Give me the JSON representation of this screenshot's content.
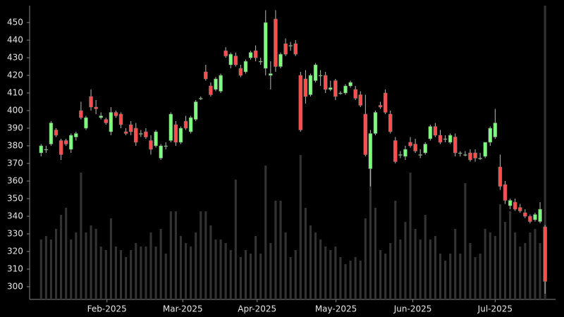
{
  "chart_data": {
    "type": "candlestick",
    "open": [
      376,
      378,
      381,
      389,
      383,
      383,
      378,
      385,
      400,
      390,
      408,
      402,
      396,
      395,
      388,
      399,
      398,
      388,
      392,
      390,
      387,
      388,
      383,
      380,
      373,
      380,
      383,
      392,
      382,
      394,
      388,
      395,
      407,
      422,
      414,
      412,
      411,
      434,
      426,
      431,
      424,
      422,
      430,
      434,
      428,
      424,
      420,
      452,
      425,
      438,
      437,
      438,
      420,
      418,
      409,
      417,
      420,
      420,
      412,
      417,
      410,
      410,
      414,
      412,
      409,
      398,
      367,
      387,
      403,
      410,
      398,
      383,
      375,
      374,
      382,
      381,
      375,
      376,
      384,
      391,
      386,
      384,
      382,
      385,
      376,
      375,
      376,
      376,
      373,
      374,
      382,
      385,
      368,
      358,
      346,
      348,
      345,
      342,
      340,
      338,
      337,
      334
    ],
    "high": [
      381,
      380,
      394,
      390,
      384,
      384,
      387,
      388,
      405,
      397,
      412,
      406,
      399,
      396,
      402,
      400,
      399,
      390,
      394,
      393,
      389,
      390,
      386,
      389,
      381,
      382,
      399,
      394,
      391,
      397,
      397,
      406,
      408,
      426,
      416,
      419,
      421,
      436,
      433,
      433,
      426,
      429,
      434,
      437,
      430,
      457,
      428,
      457,
      433,
      441,
      439,
      440,
      422,
      423,
      421,
      427,
      423,
      422,
      417,
      418,
      411,
      415,
      417,
      414,
      411,
      409,
      389,
      400,
      405,
      412,
      400,
      385,
      377,
      380,
      385,
      384,
      378,
      382,
      392,
      393,
      389,
      386,
      387,
      387,
      377,
      377,
      378,
      378,
      376,
      382,
      391,
      401,
      375,
      360,
      350,
      350,
      347,
      344,
      341,
      342,
      348,
      335
    ],
    "low": [
      374,
      376,
      380,
      385,
      372,
      380,
      376,
      383,
      395,
      389,
      400,
      398,
      395,
      392,
      386,
      396,
      390,
      386,
      386,
      380,
      385,
      384,
      375,
      379,
      372,
      378,
      382,
      380,
      381,
      389,
      387,
      394,
      406,
      417,
      408,
      411,
      410,
      430,
      424,
      425,
      419,
      421,
      429,
      428,
      426,
      420,
      412,
      422,
      424,
      431,
      434,
      431,
      388,
      404,
      408,
      416,
      414,
      410,
      411,
      406,
      409,
      409,
      413,
      406,
      402,
      374,
      357,
      386,
      401,
      398,
      387,
      370,
      373,
      372,
      379,
      376,
      373,
      375,
      383,
      385,
      381,
      382,
      381,
      374,
      374,
      374,
      371,
      371,
      372,
      373,
      380,
      384,
      355,
      347,
      344,
      343,
      342,
      339,
      336,
      337,
      336,
      296
    ],
    "close": [
      380,
      378,
      393,
      386,
      375,
      381,
      386,
      387,
      396,
      396,
      402,
      401,
      397,
      393,
      399,
      397,
      392,
      387,
      388,
      382,
      387,
      385,
      378,
      388,
      380,
      380,
      398,
      382,
      390,
      390,
      396,
      405,
      407,
      418,
      409,
      418,
      420,
      431,
      432,
      426,
      420,
      428,
      433,
      430,
      428,
      450,
      421,
      425,
      432,
      432,
      437,
      432,
      389,
      408,
      420,
      426,
      420,
      412,
      413,
      408,
      410,
      414,
      416,
      407,
      403,
      375,
      387,
      399,
      402,
      399,
      388,
      371,
      375,
      378,
      380,
      377,
      375,
      381,
      391,
      386,
      382,
      384,
      386,
      376,
      376,
      375,
      372,
      373,
      373,
      382,
      390,
      393,
      357,
      349,
      349,
      344,
      343,
      340,
      337,
      341,
      344,
      303
    ],
    "volume": [
      85,
      90,
      85,
      100,
      120,
      130,
      85,
      95,
      180,
      95,
      105,
      100,
      75,
      70,
      115,
      75,
      70,
      60,
      70,
      80,
      75,
      75,
      95,
      75,
      100,
      65,
      125,
      125,
      90,
      80,
      75,
      95,
      125,
      125,
      105,
      85,
      85,
      80,
      70,
      170,
      60,
      70,
      65,
      90,
      65,
      190,
      80,
      140,
      140,
      95,
      60,
      70,
      205,
      130,
      105,
      95,
      85,
      75,
      70,
      75,
      60,
      50,
      55,
      60,
      55,
      115,
      205,
      130,
      70,
      65,
      80,
      140,
      85,
      110,
      180,
      100,
      85,
      120,
      85,
      90,
      65,
      55,
      65,
      100,
      65,
      165,
      80,
      60,
      65,
      100,
      95,
      90,
      135,
      110,
      125,
      95,
      75,
      80,
      95,
      100,
      80,
      417
    ],
    "up_color": "#7dfc7d",
    "down_color": "#ff4d4d",
    "volume_color": "#333333",
    "ylim": [
      292.8,
      459.6
    ],
    "yticks": [
      300,
      310,
      320,
      330,
      340,
      350,
      360,
      370,
      380,
      390,
      400,
      410,
      420,
      430,
      440,
      450
    ],
    "volume_lim": [
      0,
      417
    ],
    "xlim": [
      -2.3,
      103.1
    ],
    "xticks": [
      {
        "value": 13.2,
        "label": "Feb-2025"
      },
      {
        "value": 28.4,
        "label": "Mar-2025"
      },
      {
        "value": 43.3,
        "label": "Apr-2025"
      },
      {
        "value": 59.1,
        "label": "May-2025"
      },
      {
        "value": 74.5,
        "label": "Jun-2025"
      },
      {
        "value": 91,
        "label": "Jul-2025"
      }
    ]
  }
}
